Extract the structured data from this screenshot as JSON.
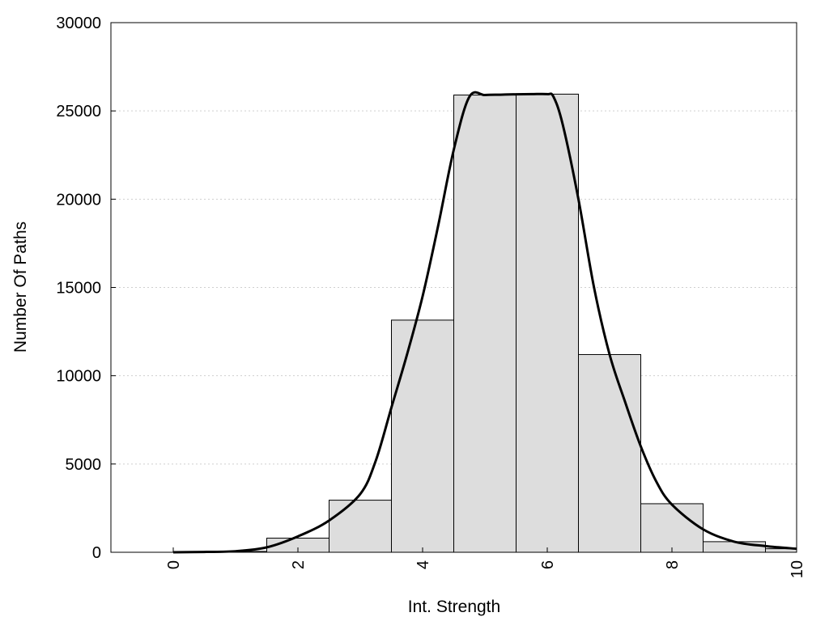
{
  "chart_data": {
    "type": "bar",
    "title": "",
    "xlabel": "Int. Strength",
    "ylabel": "Number Of Paths",
    "xlim": [
      -1,
      10
    ],
    "ylim": [
      0,
      30000
    ],
    "xticks": [
      0,
      2,
      4,
      6,
      8,
      10
    ],
    "yticks": [
      0,
      5000,
      10000,
      15000,
      20000,
      25000,
      30000
    ],
    "grid": "horizontal dotted",
    "legend": "none",
    "bar_width": 1,
    "bar_fill": "#dddddd",
    "bar_stroke": "#000000",
    "categories": [
      0,
      1,
      2,
      3,
      4,
      5,
      6,
      7,
      8,
      9,
      10
    ],
    "values": [
      0,
      50,
      800,
      2950,
      13150,
      25900,
      25950,
      11200,
      2750,
      600,
      200
    ],
    "curve": {
      "x": [
        0,
        0.5,
        1,
        1.5,
        2,
        2.5,
        3,
        3.25,
        3.5,
        3.75,
        4,
        4.25,
        4.5,
        4.75,
        5,
        5.25,
        5.5,
        5.75,
        6,
        6.1,
        6.25,
        6.5,
        6.75,
        7,
        7.25,
        7.5,
        7.75,
        8,
        8.5,
        9,
        9.5,
        10
      ],
      "y": [
        0,
        20,
        60,
        280,
        900,
        1800,
        3300,
        5200,
        8200,
        11200,
        14500,
        18500,
        22800,
        25800,
        25900,
        25920,
        25940,
        25950,
        25950,
        25800,
        24200,
        20000,
        15000,
        11200,
        8500,
        6000,
        4000,
        2700,
        1300,
        600,
        350,
        200
      ]
    }
  }
}
